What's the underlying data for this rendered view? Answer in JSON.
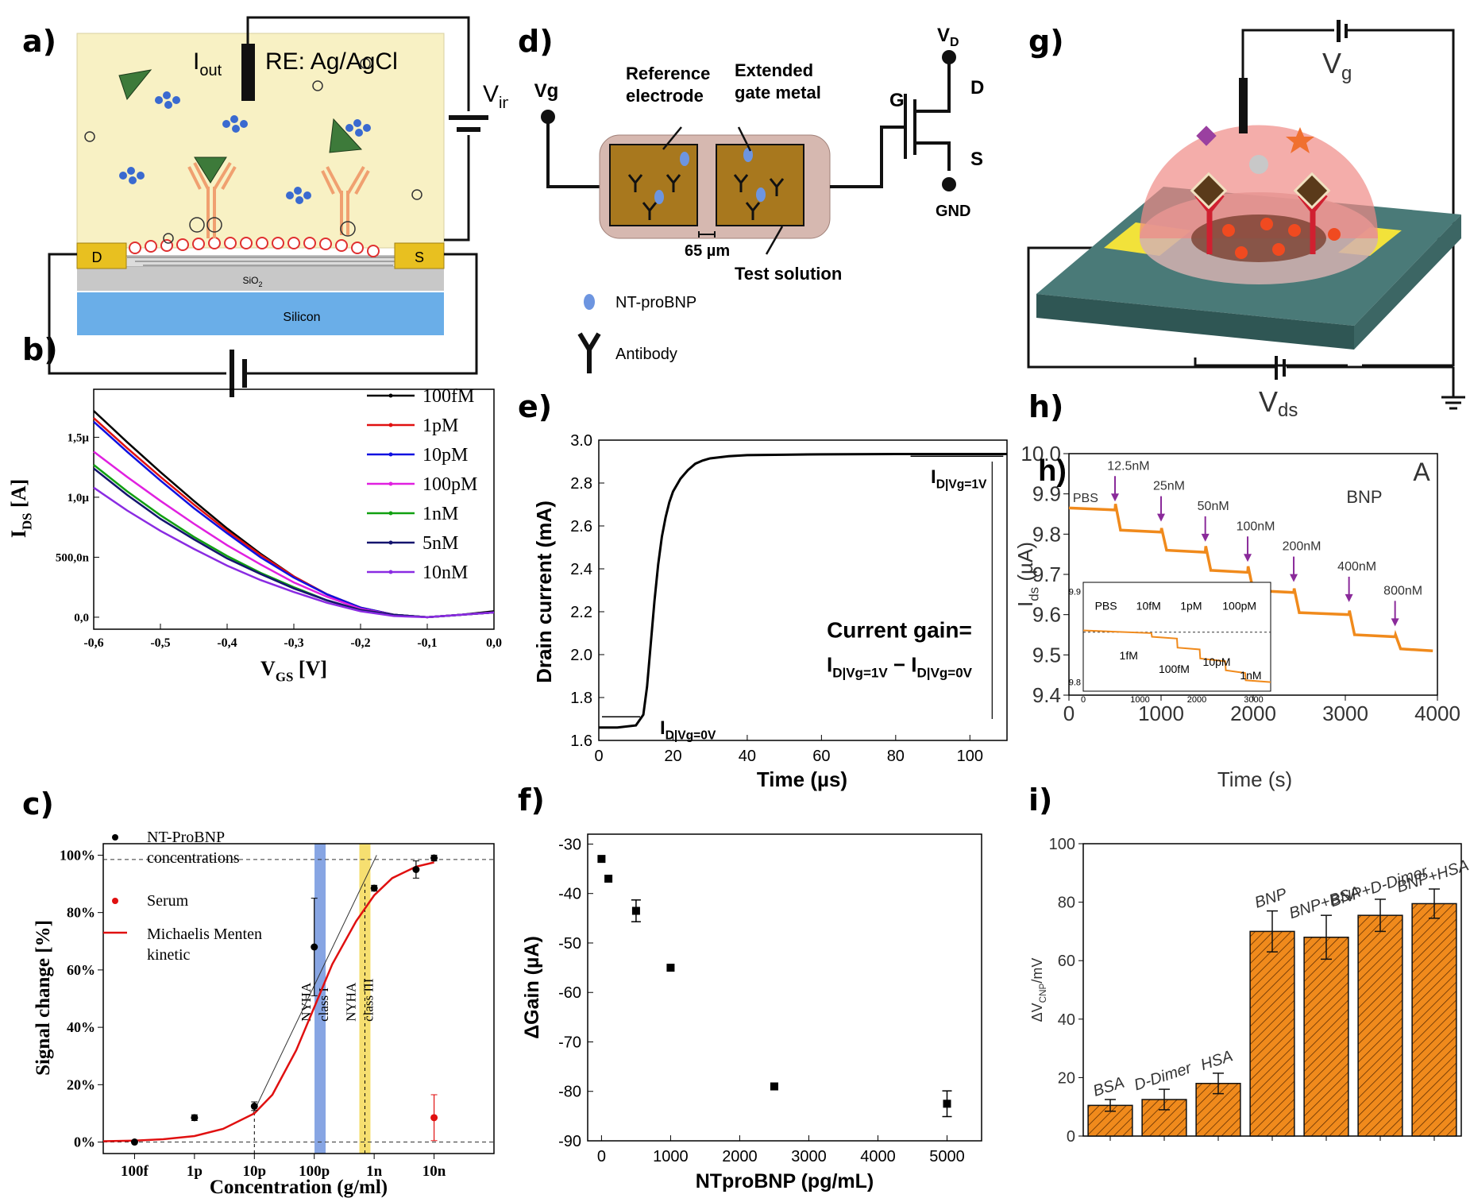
{
  "panels": {
    "a": {
      "letter": "a)",
      "i_out": "I",
      "i_out_sub": "out",
      "re_label": "RE: Ag/AgCl",
      "v_in": "V",
      "v_in_sub": "in",
      "drain": "D",
      "source": "S",
      "oxide": "SiO",
      "oxide_sub": "2",
      "substrate": "Silicon",
      "colors": {
        "electrolyte": "#f8f1c4",
        "substrate": "#6aaee8",
        "contacts": "#e8c020"
      }
    },
    "b": {
      "letter": "b)"
    },
    "c": {
      "letter": "c)"
    },
    "d": {
      "letter": "d)",
      "vg": "Vg",
      "reference_electrode": [
        "Reference",
        "electrode"
      ],
      "extended_gate": [
        "Extended",
        "gate metal"
      ],
      "gap": "65 µm",
      "test_solution": "Test solution",
      "g": "G",
      "vd": "V",
      "vd_sub": "D",
      "d": "D",
      "s": "S",
      "gnd": "GND",
      "legend_ntprobnp": "NT-proBNP",
      "legend_antibody": "Antibody",
      "colors": {
        "pad": "#a8781e",
        "frame": "#d6b8b0",
        "marker": "#6d95e0"
      }
    },
    "e": {
      "letter": "e)"
    },
    "f": {
      "letter": "f)"
    },
    "g": {
      "letter": "g)",
      "vg": "V",
      "vg_sub": "g",
      "vds": "V",
      "vds_sub": "ds",
      "colors": {
        "dome": "#f08a86",
        "base": "#4a7a78",
        "electrodes": "#f2e23a"
      }
    },
    "h": {
      "letter": "h)",
      "letter_overlay": "h)"
    },
    "i": {
      "letter": "i)"
    }
  },
  "chart_data": [
    {
      "id": "b",
      "type": "line",
      "xlabel": "V",
      "xlabel_sub": "GS",
      "xlabel_unit": "[V]",
      "ylabel": "I",
      "ylabel_sub": "DS",
      "ylabel_unit": "[A]",
      "xlim": [
        -0.6,
        0.0
      ],
      "ylim": [
        -0.1,
        1.9
      ],
      "xticks": [
        -0.6,
        -0.5,
        -0.4,
        -0.3,
        -0.2,
        -0.1,
        0.0
      ],
      "xtick_labels": [
        "-0,6",
        "-0,5",
        "-0,4",
        "-0,3",
        "-0,2",
        "-0,1",
        "0,0"
      ],
      "yticks": [
        0,
        0.5,
        1.0,
        1.5
      ],
      "ytick_labels": [
        "0,0",
        "500,0n",
        "1,0µ",
        "1,5µ"
      ],
      "y_unit_note": "µA",
      "legend_position": "top-right",
      "x": [
        -0.6,
        -0.55,
        -0.5,
        -0.45,
        -0.4,
        -0.35,
        -0.3,
        -0.25,
        -0.2,
        -0.15,
        -0.1,
        -0.05,
        0.0
      ],
      "series": [
        {
          "name": "100fM",
          "color": "#000000",
          "values": [
            1.72,
            1.46,
            1.21,
            0.97,
            0.74,
            0.53,
            0.34,
            0.19,
            0.08,
            0.02,
            0.0,
            0.02,
            0.05
          ]
        },
        {
          "name": "1pM",
          "color": "#e01010",
          "values": [
            1.66,
            1.41,
            1.17,
            0.94,
            0.72,
            0.52,
            0.34,
            0.19,
            0.08,
            0.02,
            0.0,
            0.02,
            0.04
          ]
        },
        {
          "name": "10pM",
          "color": "#1010e0",
          "values": [
            1.63,
            1.38,
            1.14,
            0.91,
            0.7,
            0.5,
            0.33,
            0.19,
            0.08,
            0.02,
            0.0,
            0.02,
            0.04
          ]
        },
        {
          "name": "100pM",
          "color": "#e020e0",
          "values": [
            1.38,
            1.17,
            0.97,
            0.78,
            0.6,
            0.44,
            0.29,
            0.17,
            0.07,
            0.02,
            0.0,
            0.02,
            0.04
          ]
        },
        {
          "name": "1nM",
          "color": "#10a010",
          "values": [
            1.27,
            1.05,
            0.85,
            0.67,
            0.51,
            0.37,
            0.25,
            0.14,
            0.06,
            0.02,
            0.0,
            0.02,
            0.04
          ]
        },
        {
          "name": "5nM",
          "color": "#14146e",
          "values": [
            1.24,
            1.02,
            0.82,
            0.65,
            0.49,
            0.36,
            0.24,
            0.14,
            0.06,
            0.02,
            0.0,
            0.02,
            0.04
          ]
        },
        {
          "name": "10nM",
          "color": "#8a2be2",
          "values": [
            1.08,
            0.89,
            0.72,
            0.57,
            0.43,
            0.31,
            0.21,
            0.12,
            0.05,
            0.01,
            0.0,
            0.02,
            0.04
          ]
        }
      ]
    },
    {
      "id": "c",
      "type": "scatter",
      "xlabel": "Concentration (g/ml)",
      "ylabel": "Signal change [%]",
      "x_scale": "log",
      "xlim": [
        3e-14,
        1e-07
      ],
      "ylim": [
        -4,
        104
      ],
      "xtick_labels": [
        "100f",
        "1p",
        "10p",
        "100p",
        "1n",
        "10n"
      ],
      "xticks": [
        1e-13,
        1e-12,
        1e-11,
        1e-10,
        1e-09,
        1e-08
      ],
      "yticks": [
        0,
        20,
        40,
        60,
        80,
        100
      ],
      "ytick_labels": [
        "0%",
        "20%",
        "40%",
        "60%",
        "80%",
        "100%"
      ],
      "legend_position": "top-left",
      "legend": [
        "NT-ProBNP concentrations",
        "Serum",
        "Michaelis Menten kinetic"
      ],
      "legend_lines": [
        [
          "NT-ProBNP",
          "concentrations"
        ],
        [
          "Serum"
        ],
        [
          "Michaelis Menten",
          "kinetic"
        ]
      ],
      "series": [
        {
          "name": "NT-ProBNP concentrations",
          "color": "#000000",
          "x": [
            1e-13,
            1e-12,
            1e-11,
            1e-10,
            1e-09,
            5e-09,
            1e-08
          ],
          "y": [
            0,
            8.5,
            12.5,
            68,
            88.5,
            95,
            99
          ],
          "err": [
            0,
            1,
            1.5,
            17,
            1,
            3,
            1
          ]
        },
        {
          "name": "Serum",
          "color": "#e01010",
          "x": [
            1e-08
          ],
          "y": [
            8.5
          ],
          "err": [
            8
          ]
        },
        {
          "name": "Michaelis Menten kinetic",
          "color": "#e01010",
          "x": [
            3e-14,
            1e-13,
            3e-13,
            1e-12,
            3e-12,
            1e-11,
            2e-11,
            5e-11,
            1e-10,
            2e-10,
            5e-10,
            1e-09,
            2e-09,
            5e-09,
            1e-08
          ],
          "y": [
            0.3,
            0.5,
            1.0,
            2.1,
            4.6,
            10.0,
            16.5,
            32,
            47,
            62,
            77,
            86,
            92,
            96,
            97.5
          ]
        }
      ],
      "tangent_line": {
        "x": [
          9.5e-12,
          1.1e-09
        ],
        "y": [
          10,
          100
        ]
      },
      "reference_lines": {
        "y": [
          0,
          98.5
        ],
        "x_dashed": [
          1e-11,
          7e-10
        ]
      },
      "bands": [
        {
          "label": "NYHA class I",
          "lines": [
            "NYHA",
            "class I"
          ],
          "x_center": 1.25e-10,
          "color": "#7a9be0"
        },
        {
          "label": "NYHA class III",
          "lines": [
            "NYHA",
            "class III"
          ],
          "x_center": 7e-10,
          "color": "#f5dc60"
        }
      ]
    },
    {
      "id": "e",
      "type": "line",
      "xlabel": "Time (µs)",
      "ylabel": "Drain current (mA)",
      "xlim": [
        0,
        110
      ],
      "ylim": [
        1.6,
        3.0
      ],
      "xticks": [
        0,
        20,
        40,
        60,
        80,
        100
      ],
      "yticks": [
        1.6,
        1.8,
        2.0,
        2.2,
        2.4,
        2.6,
        2.8,
        3.0
      ],
      "ytick_labels": [
        "1.6",
        "1.8",
        "2.0",
        "2.2",
        "2.4",
        "2.6",
        "2.8",
        "3.0"
      ],
      "series": [
        {
          "name": "drain current",
          "color": "#000000",
          "x": [
            0,
            5,
            10,
            12,
            13,
            14,
            15,
            16,
            17,
            18,
            19,
            20,
            22,
            24,
            26,
            28,
            30,
            35,
            40,
            50,
            60,
            80,
            100,
            110
          ],
          "y": [
            1.66,
            1.66,
            1.67,
            1.72,
            1.85,
            2.05,
            2.25,
            2.42,
            2.55,
            2.64,
            2.71,
            2.76,
            2.82,
            2.86,
            2.89,
            2.905,
            2.915,
            2.925,
            2.93,
            2.932,
            2.934,
            2.935,
            2.935,
            2.935
          ]
        }
      ],
      "annotations": {
        "i_off": "I",
        "i_off_sub": "D|Vg=0V",
        "i_on": "I",
        "i_on_sub": "D|Vg=1V",
        "gain_title": "Current gain=",
        "gain_sub_1": "D|Vg=1V",
        "gain_minus": " − I",
        "gain_sub_2": "D|Vg=0V"
      }
    },
    {
      "id": "f",
      "type": "scatter",
      "xlabel": "NTproBNP (pg/mL)",
      "ylabel": "ΔGain (µA)",
      "xlim": [
        -200,
        5500
      ],
      "ylim": [
        -90,
        -28
      ],
      "xticks": [
        0,
        1000,
        2000,
        3000,
        4000,
        5000
      ],
      "yticks": [
        -90,
        -80,
        -70,
        -60,
        -50,
        -40,
        -30
      ],
      "series": [
        {
          "name": "ΔGain",
          "color": "#000000",
          "x": [
            0,
            100,
            500,
            1000,
            2500,
            5000
          ],
          "y": [
            -33,
            -37,
            -43.5,
            -55,
            -79,
            -82.5
          ],
          "err": [
            0,
            0,
            2.2,
            0,
            0,
            2.6
          ]
        }
      ]
    },
    {
      "id": "h",
      "type": "line",
      "xlabel": "Time (s)",
      "ylabel": "I",
      "ylabel_sub": "ds",
      "ylabel_unit": " (µA)",
      "xlim": [
        0,
        4000
      ],
      "ylim": [
        9.4,
        10.0
      ],
      "xticks": [
        0,
        1000,
        2000,
        3000,
        4000
      ],
      "yticks": [
        9.4,
        9.5,
        9.6,
        9.7,
        9.8,
        9.9,
        10.0
      ],
      "ytick_labels": [
        "9.4",
        "9.5",
        "9.6",
        "9.7",
        "9.8",
        "9.9",
        "10.0"
      ],
      "panel_tag": "A",
      "analyte": "BNP",
      "series": [
        {
          "name": "I_ds",
          "color": "#f08a1c",
          "x": [
            0,
            500,
            505,
            560,
            1000,
            1005,
            1060,
            1480,
            1485,
            1540,
            1940,
            1945,
            2000,
            2440,
            2445,
            2500,
            3040,
            3045,
            3100,
            3540,
            3545,
            3600,
            3950
          ],
          "y": [
            9.865,
            9.86,
            9.875,
            9.81,
            9.805,
            9.815,
            9.76,
            9.755,
            9.77,
            9.71,
            9.705,
            9.72,
            9.66,
            9.655,
            9.665,
            9.605,
            9.6,
            9.61,
            9.55,
            9.545,
            9.55,
            9.515,
            9.51
          ]
        }
      ],
      "arrow_labels": [
        "PBS",
        "12.5nM",
        "25nM",
        "50nM",
        "100nM",
        "200nM",
        "400nM",
        "800nM"
      ],
      "arrow_x": [
        500,
        1000,
        1480,
        1940,
        2440,
        3040,
        3540
      ],
      "inset": {
        "type": "line",
        "xlim": [
          0,
          3300
        ],
        "ylim": [
          9.79,
          9.91
        ],
        "xticks": [
          0,
          1000,
          2000,
          3000
        ],
        "ytick_labels": [
          "9.9",
          "9.8"
        ],
        "yticks": [
          9.9,
          9.8
        ],
        "reference_y": 9.855,
        "series": [
          {
            "name": "I_ds",
            "color": "#f08a1c",
            "x": [
              0,
              1200,
              1210,
              1650,
              1660,
              2050,
              2060,
              2500,
              2510,
              2850,
              2860,
              3300
            ],
            "y": [
              9.857,
              9.854,
              9.85,
              9.848,
              9.838,
              9.836,
              9.826,
              9.823,
              9.813,
              9.81,
              9.802,
              9.8
            ]
          }
        ],
        "labels_top": [
          "PBS",
          "10fM",
          "1pM",
          "100pM"
        ],
        "labels_bottom": [
          "1fM",
          "100fM",
          "10pM",
          "1nM"
        ]
      }
    },
    {
      "id": "i",
      "type": "bar",
      "ylabel": "ΔV",
      "ylabel_sub": "CNP",
      "ylabel_unit": "/mV",
      "ylim": [
        0,
        100
      ],
      "yticks": [
        0,
        20,
        40,
        60,
        80,
        100
      ],
      "categories": [
        "BSA",
        "D-Dimer",
        "HSA",
        "BNP",
        "BNP+BSA",
        "BNP+D-Dimer",
        "BNP+HSA"
      ],
      "values": [
        10.5,
        12.5,
        18,
        70,
        68,
        75.5,
        79.5
      ],
      "err": [
        2,
        3.5,
        3.5,
        7,
        7.5,
        5.5,
        5
      ],
      "color": "#f08a1c",
      "hatch": true
    }
  ]
}
